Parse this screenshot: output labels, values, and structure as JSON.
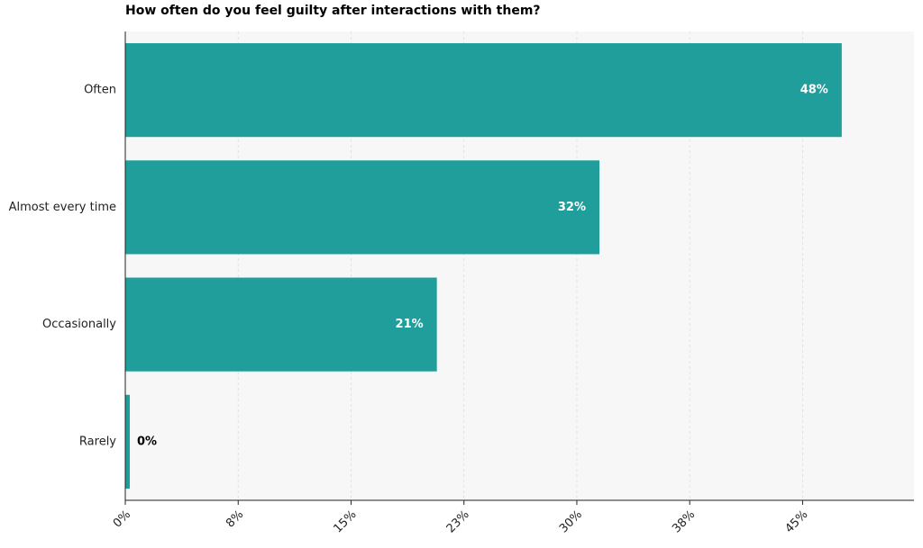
{
  "chart_data": {
    "type": "hbar",
    "title": "How often do you feel guilty after interactions with them?",
    "categories": [
      "Often",
      "Almost every time",
      "Occasionally",
      "Rarely"
    ],
    "values": [
      47.6,
      31.5,
      20.7,
      0.3
    ],
    "value_labels": [
      "48%",
      "32%",
      "21%",
      "0%"
    ],
    "color": "#1f9e9c",
    "xlim": [
      0,
      52.4
    ],
    "xticks": [
      {
        "value": 0,
        "label": "0%"
      },
      {
        "value": 7.5,
        "label": "8%"
      },
      {
        "value": 15,
        "label": "15%"
      },
      {
        "value": 22.5,
        "label": "23%"
      },
      {
        "value": 30,
        "label": "30%"
      },
      {
        "value": 37.5,
        "label": "38%"
      },
      {
        "value": 45,
        "label": "45%"
      }
    ],
    "grid": true
  }
}
